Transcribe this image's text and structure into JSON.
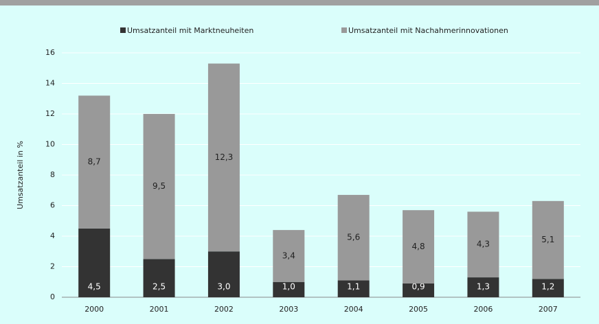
{
  "chart_data": {
    "type": "stacked_bar",
    "categories": [
      "2000",
      "2001",
      "2002",
      "2003",
      "2004",
      "2005",
      "2006",
      "2007"
    ],
    "y_label": "Umsatzanteil in %",
    "series": [
      {
        "name": "Umsatzanteil mit Marktneuheiten",
        "color": "#333333",
        "values": [
          4.5,
          2.5,
          3.0,
          1.0,
          1.1,
          0.9,
          1.3,
          1.2
        ],
        "value_labels": [
          "4,5",
          "2,5",
          "3,0",
          "1,0",
          "1,1",
          "0,9",
          "1,3",
          "1,2"
        ]
      },
      {
        "name": "Umsatzanteil mit Nachahmerinnovationen",
        "color": "#999999",
        "values": [
          8.7,
          9.5,
          12.3,
          3.4,
          5.6,
          4.8,
          4.3,
          5.1
        ],
        "value_labels": [
          "8,7",
          "9,5",
          "12,3",
          "3,4",
          "5,6",
          "4,8",
          "4,3",
          "5,1"
        ]
      }
    ],
    "ylim": [
      0,
      16
    ],
    "yticks": [
      0,
      2,
      4,
      6,
      8,
      10,
      12,
      14,
      16
    ],
    "grid": true,
    "legend": "top"
  }
}
